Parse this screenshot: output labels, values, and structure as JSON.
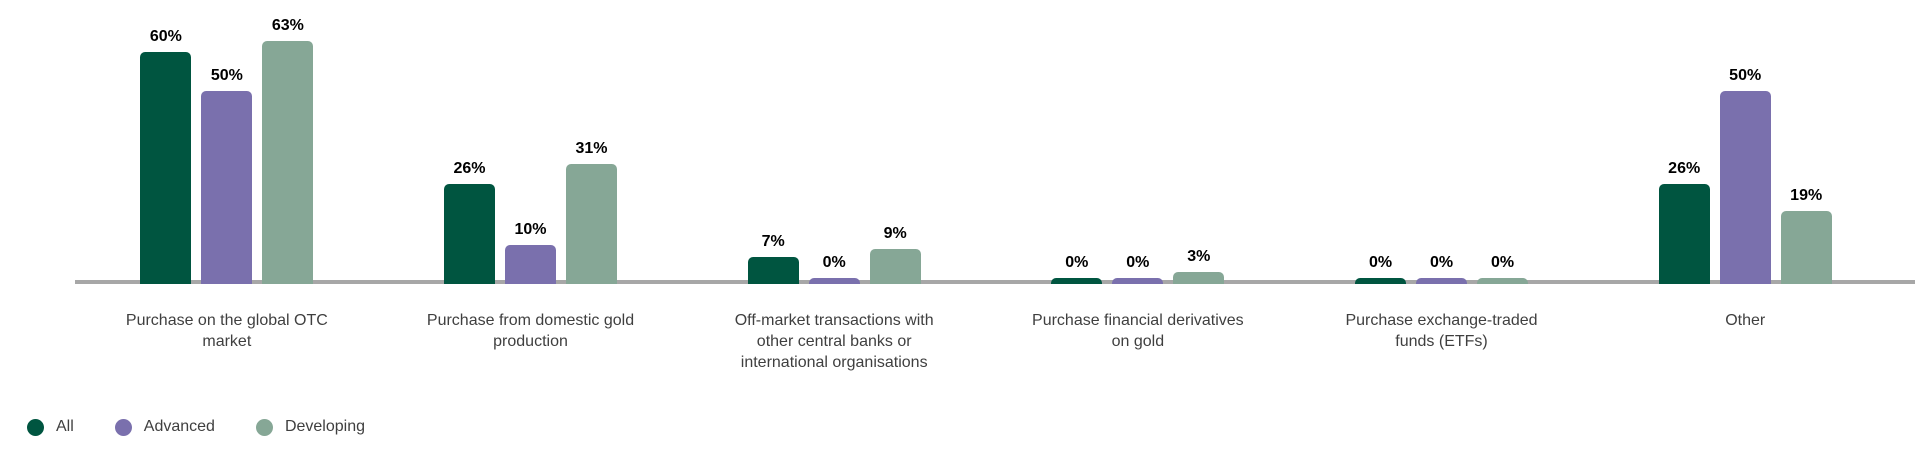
{
  "chart_data": {
    "type": "bar",
    "title": "",
    "xlabel": "",
    "ylabel": "",
    "ylim": [
      0,
      70
    ],
    "grid": false,
    "legend_position": "bottom-left",
    "value_suffix": "%",
    "axis_line_color": "#A7A7A7",
    "value_label_color": "#000000",
    "category_label_color": "#3F3F3F",
    "categories": [
      "Purchase on the global OTC market",
      "Purchase from domestic gold production",
      "Off-market transactions with other central banks or international organisations",
      "Purchase financial derivatives on gold",
      "Purchase exchange-traded funds (ETFs)",
      "Other"
    ],
    "category_lines": [
      [
        "Purchase on the global OTC",
        "market"
      ],
      [
        "Purchase from domestic gold",
        "production"
      ],
      [
        "Off-market transactions with",
        "other central banks or",
        "international organisations"
      ],
      [
        "Purchase financial derivatives",
        "on gold"
      ],
      [
        "Purchase exchange-traded",
        "funds (ETFs)"
      ],
      [
        "Other"
      ]
    ],
    "series": [
      {
        "name": "All",
        "color": "#005540",
        "values": [
          60,
          26,
          7,
          0,
          0,
          26
        ]
      },
      {
        "name": "Advanced",
        "color": "#7A70AD",
        "values": [
          50,
          10,
          0,
          0,
          0,
          50
        ]
      },
      {
        "name": "Developing",
        "color": "#86A796",
        "values": [
          63,
          31,
          9,
          3,
          0,
          19
        ]
      }
    ],
    "value_labels": [
      [
        "60%",
        "26%",
        "7%",
        "0%",
        "0%",
        "26%"
      ],
      [
        "50%",
        "10%",
        "0%",
        "0%",
        "0%",
        "50%"
      ],
      [
        "63%",
        "31%",
        "9%",
        "3%",
        "0%",
        "19%"
      ]
    ],
    "legend": {
      "items": [
        {
          "label": "All",
          "color": "#005540"
        },
        {
          "label": "Advanced",
          "color": "#7A70AD"
        },
        {
          "label": "Developing",
          "color": "#86A796"
        }
      ]
    }
  }
}
